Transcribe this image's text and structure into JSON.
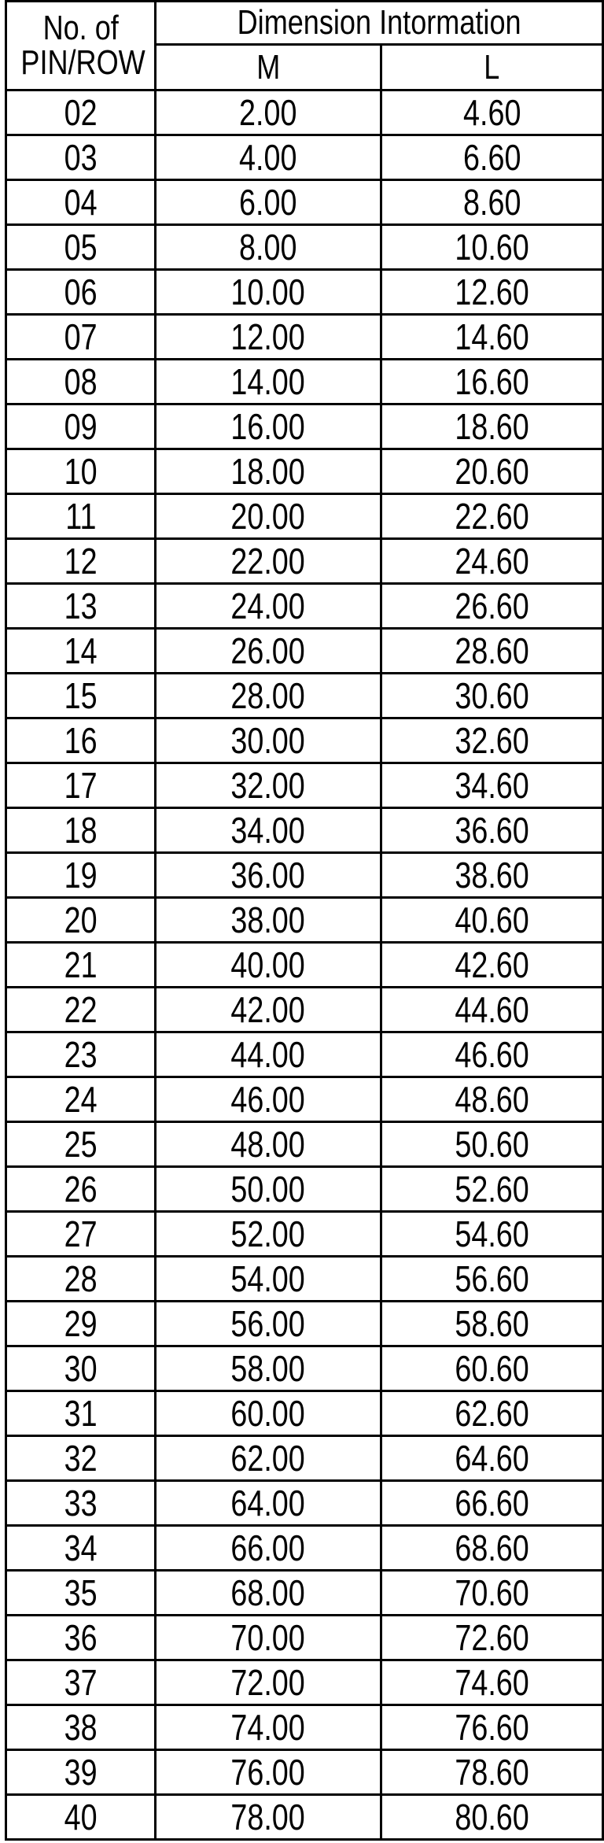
{
  "header": {
    "col1_line1": "No. of",
    "col1_line2": "PIN/ROW",
    "group": "Dimension Intormation",
    "col_m": "M",
    "col_l": "L"
  },
  "rows": [
    [
      "02",
      "2.00",
      "4.60"
    ],
    [
      "03",
      "4.00",
      "6.60"
    ],
    [
      "04",
      "6.00",
      "8.60"
    ],
    [
      "05",
      "8.00",
      "10.60"
    ],
    [
      "06",
      "10.00",
      "12.60"
    ],
    [
      "07",
      "12.00",
      "14.60"
    ],
    [
      "08",
      "14.00",
      "16.60"
    ],
    [
      "09",
      "16.00",
      "18.60"
    ],
    [
      "10",
      "18.00",
      "20.60"
    ],
    [
      "11",
      "20.00",
      "22.60"
    ],
    [
      "12",
      "22.00",
      "24.60"
    ],
    [
      "13",
      "24.00",
      "26.60"
    ],
    [
      "14",
      "26.00",
      "28.60"
    ],
    [
      "15",
      "28.00",
      "30.60"
    ],
    [
      "16",
      "30.00",
      "32.60"
    ],
    [
      "17",
      "32.00",
      "34.60"
    ],
    [
      "18",
      "34.00",
      "36.60"
    ],
    [
      "19",
      "36.00",
      "38.60"
    ],
    [
      "20",
      "38.00",
      "40.60"
    ],
    [
      "21",
      "40.00",
      "42.60"
    ],
    [
      "22",
      "42.00",
      "44.60"
    ],
    [
      "23",
      "44.00",
      "46.60"
    ],
    [
      "24",
      "46.00",
      "48.60"
    ],
    [
      "25",
      "48.00",
      "50.60"
    ],
    [
      "26",
      "50.00",
      "52.60"
    ],
    [
      "27",
      "52.00",
      "54.60"
    ],
    [
      "28",
      "54.00",
      "56.60"
    ],
    [
      "29",
      "56.00",
      "58.60"
    ],
    [
      "30",
      "58.00",
      "60.60"
    ],
    [
      "31",
      "60.00",
      "62.60"
    ],
    [
      "32",
      "62.00",
      "64.60"
    ],
    [
      "33",
      "64.00",
      "66.60"
    ],
    [
      "34",
      "66.00",
      "68.60"
    ],
    [
      "35",
      "68.00",
      "70.60"
    ],
    [
      "36",
      "70.00",
      "72.60"
    ],
    [
      "37",
      "72.00",
      "74.60"
    ],
    [
      "38",
      "74.00",
      "76.60"
    ],
    [
      "39",
      "76.00",
      "78.60"
    ],
    [
      "40",
      "78.00",
      "80.60"
    ]
  ]
}
